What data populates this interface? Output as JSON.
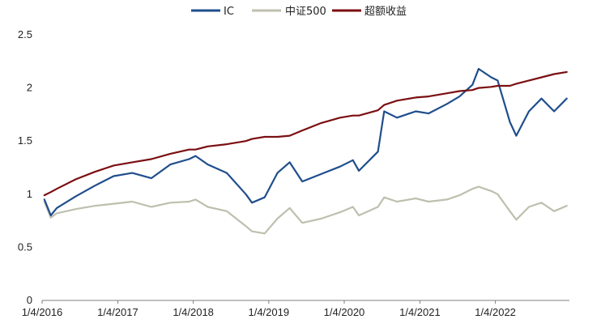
{
  "chart_data": {
    "type": "line",
    "title": "",
    "xlabel": "",
    "ylabel": "",
    "legend_position": "top-center",
    "grid": false,
    "ylim": [
      0,
      2.5
    ],
    "yticks": [
      "0",
      "0.5",
      "1",
      "1.5",
      "2",
      "2.5"
    ],
    "xticks": [
      "1/4/2016",
      "1/4/2017",
      "1/4/2018",
      "1/4/2019",
      "1/4/2020",
      "1/4/2021",
      "1/4/2022"
    ],
    "x": [
      "2016-01",
      "2016-02",
      "2016-03",
      "2016-06",
      "2016-09",
      "2016-12",
      "2017-03",
      "2017-06",
      "2017-09",
      "2017-12",
      "2018-01",
      "2018-03",
      "2018-06",
      "2018-09",
      "2018-10",
      "2018-12",
      "2019-02",
      "2019-04",
      "2019-06",
      "2019-09",
      "2019-12",
      "2020-02",
      "2020-03",
      "2020-06",
      "2020-07",
      "2020-09",
      "2020-12",
      "2021-02",
      "2021-05",
      "2021-07",
      "2021-09",
      "2021-10",
      "2021-12",
      "2022-01",
      "2022-03",
      "2022-04",
      "2022-06",
      "2022-08",
      "2022-10",
      "2022-12"
    ],
    "series": [
      {
        "name": "IC",
        "color": "#1f4e8c",
        "values": [
          0.95,
          0.8,
          0.87,
          0.98,
          1.08,
          1.17,
          1.2,
          1.15,
          1.28,
          1.33,
          1.36,
          1.28,
          1.2,
          1.0,
          0.92,
          0.97,
          1.2,
          1.3,
          1.12,
          1.19,
          1.26,
          1.32,
          1.22,
          1.4,
          1.78,
          1.72,
          1.78,
          1.76,
          1.85,
          1.92,
          2.03,
          2.18,
          2.1,
          2.07,
          1.68,
          1.55,
          1.78,
          1.9,
          1.78,
          1.9
        ]
      },
      {
        "name": "中证500",
        "color": "#bfbfaf",
        "values": [
          0.93,
          0.78,
          0.82,
          0.86,
          0.89,
          0.91,
          0.93,
          0.88,
          0.92,
          0.93,
          0.95,
          0.88,
          0.84,
          0.7,
          0.65,
          0.63,
          0.77,
          0.87,
          0.73,
          0.77,
          0.83,
          0.88,
          0.8,
          0.88,
          0.97,
          0.93,
          0.96,
          0.93,
          0.95,
          0.99,
          1.05,
          1.07,
          1.03,
          1.0,
          0.84,
          0.76,
          0.88,
          0.92,
          0.84,
          0.89
        ]
      },
      {
        "name": "超额收益",
        "color": "#7b0f12",
        "values": [
          0.99,
          1.02,
          1.05,
          1.14,
          1.21,
          1.27,
          1.3,
          1.33,
          1.38,
          1.42,
          1.42,
          1.45,
          1.47,
          1.5,
          1.52,
          1.54,
          1.54,
          1.55,
          1.6,
          1.67,
          1.72,
          1.74,
          1.74,
          1.79,
          1.84,
          1.88,
          1.91,
          1.92,
          1.95,
          1.97,
          1.98,
          2.0,
          2.01,
          2.02,
          2.02,
          2.04,
          2.07,
          2.1,
          2.13,
          2.15
        ]
      }
    ]
  }
}
